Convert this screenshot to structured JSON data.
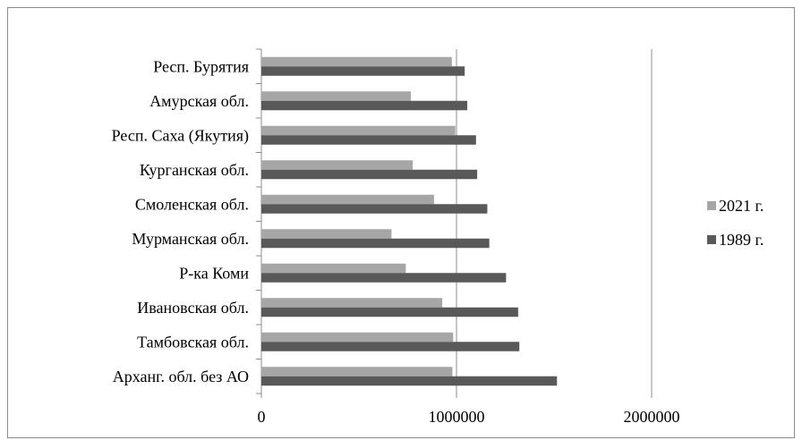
{
  "chart_data": {
    "type": "bar",
    "orientation": "horizontal",
    "categories": [
      "Арханг. обл. без АО",
      "Тамбовская обл.",
      "Ивановская обл.",
      "Р-ка Коми",
      "Мурманская обл.",
      "Смоленская обл.",
      "Курганская обл.",
      "Респ. Саха (Якутия)",
      "Амурская обл.",
      "Респ. Бурятия"
    ],
    "series": [
      {
        "name": "2021 г.",
        "color": "#a6a6a6",
        "values": [
          979000,
          983000,
          927000,
          740000,
          667000,
          885000,
          776000,
          994000,
          766000,
          976000
        ]
      },
      {
        "name": "1989 г.",
        "color": "#595959",
        "values": [
          1515000,
          1322000,
          1316000,
          1254000,
          1168000,
          1158000,
          1106000,
          1100000,
          1055000,
          1042000
        ]
      }
    ],
    "x_ticks": [
      "0",
      "1000000",
      "2000000"
    ],
    "xlim": [
      0,
      2000000
    ],
    "grid": true,
    "legend_position": "right"
  }
}
